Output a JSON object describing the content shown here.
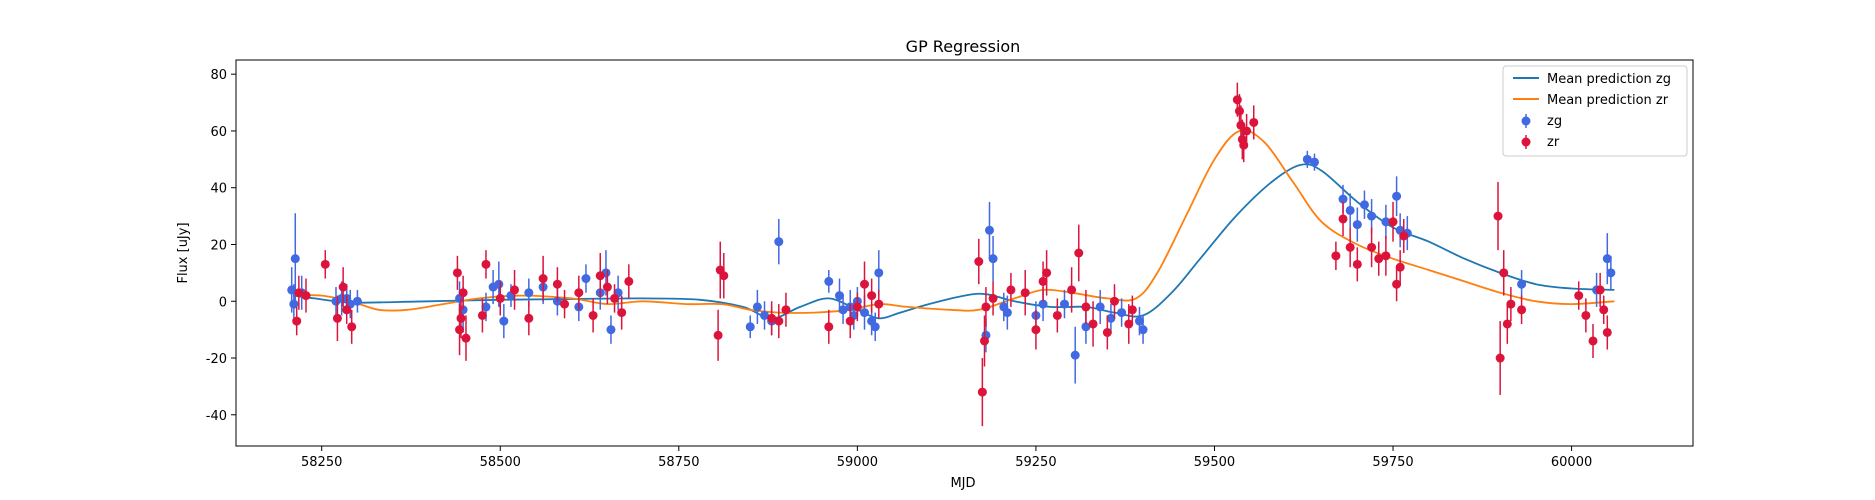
{
  "chart_data": {
    "type": "scatter",
    "title": "GP Regression",
    "xlabel": "MJD",
    "ylabel": "Flux [uJy]",
    "xlim": [
      58130,
      60170
    ],
    "ylim": [
      -51,
      85
    ],
    "xticks": [
      58250,
      58500,
      58750,
      59000,
      59250,
      59500,
      59750,
      60000
    ],
    "yticks": [
      -40,
      -20,
      0,
      20,
      40,
      60,
      80
    ],
    "legend_position": "top-right",
    "grid": false,
    "colors": {
      "zg_line": "#1f77b4",
      "zr_line": "#ff7f0e",
      "zg_points": "#4169e1",
      "zr_points": "#dc143c"
    },
    "legend": [
      "Mean prediction zg",
      "Mean prediction zr",
      "zg",
      "zr"
    ],
    "lines": [
      {
        "name": "Mean prediction zg",
        "color": "#1f77b4",
        "points": [
          [
            58210,
            2
          ],
          [
            58240,
            1
          ],
          [
            58270,
            0
          ],
          [
            58300,
            -0.5
          ],
          [
            58400,
            0
          ],
          [
            58500,
            0.5
          ],
          [
            58600,
            0.8
          ],
          [
            58700,
            1
          ],
          [
            58780,
            0.5
          ],
          [
            58840,
            -2
          ],
          [
            58880,
            -6
          ],
          [
            58920,
            -2
          ],
          [
            58960,
            1
          ],
          [
            59000,
            -3
          ],
          [
            59030,
            -6
          ],
          [
            59060,
            -4
          ],
          [
            59100,
            -1
          ],
          [
            59150,
            2
          ],
          [
            59180,
            2.5
          ],
          [
            59220,
            0
          ],
          [
            59270,
            -2
          ],
          [
            59320,
            -2
          ],
          [
            59360,
            -4
          ],
          [
            59400,
            -5
          ],
          [
            59440,
            3
          ],
          [
            59480,
            15
          ],
          [
            59530,
            30
          ],
          [
            59580,
            42
          ],
          [
            59620,
            48
          ],
          [
            59650,
            46
          ],
          [
            59700,
            35
          ],
          [
            59750,
            26
          ],
          [
            59800,
            21
          ],
          [
            59850,
            15
          ],
          [
            59900,
            10
          ],
          [
            59950,
            6
          ],
          [
            60000,
            4.5
          ],
          [
            60060,
            4
          ]
        ]
      },
      {
        "name": "Mean prediction zr",
        "color": "#ff7f0e",
        "points": [
          [
            58210,
            2
          ],
          [
            58250,
            2
          ],
          [
            58290,
            0
          ],
          [
            58330,
            -3
          ],
          [
            58370,
            -3
          ],
          [
            58420,
            -1
          ],
          [
            58470,
            1
          ],
          [
            58530,
            2
          ],
          [
            58600,
            1
          ],
          [
            58650,
            -1
          ],
          [
            58700,
            0
          ],
          [
            58760,
            -1
          ],
          [
            58810,
            -1
          ],
          [
            58850,
            -3
          ],
          [
            58890,
            -4
          ],
          [
            58940,
            -4
          ],
          [
            58990,
            -3
          ],
          [
            59030,
            -1
          ],
          [
            59070,
            -2
          ],
          [
            59130,
            -3
          ],
          [
            59170,
            -3
          ],
          [
            59220,
            1
          ],
          [
            59260,
            4
          ],
          [
            59300,
            3
          ],
          [
            59350,
            1
          ],
          [
            59390,
            1
          ],
          [
            59420,
            10
          ],
          [
            59460,
            30
          ],
          [
            59500,
            50
          ],
          [
            59535,
            60
          ],
          [
            59570,
            56
          ],
          [
            59610,
            42
          ],
          [
            59650,
            28
          ],
          [
            59700,
            20
          ],
          [
            59750,
            15
          ],
          [
            59800,
            11
          ],
          [
            59850,
            7
          ],
          [
            59900,
            3
          ],
          [
            59950,
            0
          ],
          [
            60000,
            -1
          ],
          [
            60060,
            0
          ]
        ]
      }
    ],
    "series": [
      {
        "name": "zg",
        "color": "#4169e1",
        "points": [
          [
            58208,
            4,
            8
          ],
          [
            58211,
            -1,
            7
          ],
          [
            58213,
            15,
            16
          ],
          [
            58222,
            3,
            6
          ],
          [
            58270,
            0,
            5
          ],
          [
            58278,
            1,
            6
          ],
          [
            58285,
            1,
            5
          ],
          [
            58290,
            -1,
            5
          ],
          [
            58300,
            0,
            4
          ],
          [
            58443,
            1,
            6
          ],
          [
            58448,
            -3,
            8
          ],
          [
            58480,
            -2,
            5
          ],
          [
            58490,
            5,
            6
          ],
          [
            58498,
            6,
            8
          ],
          [
            58505,
            -7,
            6
          ],
          [
            58515,
            2,
            4
          ],
          [
            58540,
            3,
            5
          ],
          [
            58560,
            5,
            6
          ],
          [
            58580,
            0,
            5
          ],
          [
            58610,
            -2,
            5
          ],
          [
            58620,
            8,
            5
          ],
          [
            58640,
            3,
            6
          ],
          [
            58648,
            10,
            8
          ],
          [
            58655,
            -10,
            5
          ],
          [
            58665,
            3,
            6
          ],
          [
            58850,
            -9,
            4
          ],
          [
            58860,
            -2,
            6
          ],
          [
            58870,
            -5,
            5
          ],
          [
            58880,
            -7,
            5
          ],
          [
            58890,
            21,
            8
          ],
          [
            58960,
            7,
            4
          ],
          [
            58975,
            2,
            6
          ],
          [
            58980,
            -3,
            5
          ],
          [
            58990,
            -2,
            6
          ],
          [
            58995,
            -5,
            5
          ],
          [
            59000,
            0,
            5
          ],
          [
            59010,
            -4,
            6
          ],
          [
            59020,
            -7,
            5
          ],
          [
            59025,
            -9,
            5
          ],
          [
            59030,
            10,
            8
          ],
          [
            59180,
            -12,
            6
          ],
          [
            59185,
            25,
            10
          ],
          [
            59190,
            15,
            8
          ],
          [
            59205,
            -2,
            5
          ],
          [
            59210,
            -4,
            6
          ],
          [
            59250,
            -5,
            5
          ],
          [
            59260,
            -1,
            6
          ],
          [
            59290,
            -1,
            5
          ],
          [
            59305,
            -19,
            10
          ],
          [
            59320,
            -9,
            6
          ],
          [
            59340,
            -2,
            6
          ],
          [
            59355,
            -6,
            5
          ],
          [
            59370,
            -4,
            5
          ],
          [
            59395,
            -7,
            5
          ],
          [
            59400,
            -10,
            5
          ],
          [
            59630,
            50,
            3
          ],
          [
            59640,
            49,
            3
          ],
          [
            59680,
            36,
            5
          ],
          [
            59690,
            32,
            6
          ],
          [
            59700,
            27,
            6
          ],
          [
            59710,
            34,
            5
          ],
          [
            59720,
            30,
            6
          ],
          [
            59740,
            28,
            6
          ],
          [
            59755,
            37,
            7
          ],
          [
            59760,
            25,
            6
          ],
          [
            59770,
            24,
            6
          ],
          [
            59930,
            6,
            5
          ],
          [
            60035,
            4,
            6
          ],
          [
            60050,
            15,
            9
          ],
          [
            60055,
            10,
            6
          ]
        ]
      },
      {
        "name": "zr",
        "color": "#dc143c",
        "points": [
          [
            58215,
            -7,
            5
          ],
          [
            58218,
            3,
            6
          ],
          [
            58228,
            2,
            6
          ],
          [
            58255,
            13,
            5
          ],
          [
            58272,
            -6,
            8
          ],
          [
            58280,
            5,
            7
          ],
          [
            58285,
            -3,
            5
          ],
          [
            58292,
            -9,
            6
          ],
          [
            58440,
            10,
            6
          ],
          [
            58443,
            -10,
            9
          ],
          [
            58445,
            -6,
            7
          ],
          [
            58448,
            3,
            6
          ],
          [
            58452,
            -13,
            8
          ],
          [
            58475,
            -5,
            6
          ],
          [
            58480,
            13,
            5
          ],
          [
            58500,
            1,
            6
          ],
          [
            58520,
            4,
            7
          ],
          [
            58540,
            -6,
            6
          ],
          [
            58560,
            8,
            8
          ],
          [
            58580,
            6,
            6
          ],
          [
            58590,
            -1,
            5
          ],
          [
            58610,
            3,
            6
          ],
          [
            58630,
            -5,
            6
          ],
          [
            58640,
            9,
            8
          ],
          [
            58650,
            5,
            6
          ],
          [
            58660,
            1,
            5
          ],
          [
            58670,
            -4,
            6
          ],
          [
            58680,
            7,
            6
          ],
          [
            58805,
            -12,
            9
          ],
          [
            58808,
            11,
            10
          ],
          [
            58813,
            9,
            8
          ],
          [
            58880,
            -6,
            6
          ],
          [
            58890,
            -7,
            6
          ],
          [
            58900,
            -3,
            6
          ],
          [
            58960,
            -9,
            6
          ],
          [
            58990,
            -7,
            6
          ],
          [
            59000,
            -2,
            5
          ],
          [
            59010,
            6,
            8
          ],
          [
            59020,
            2,
            6
          ],
          [
            59030,
            -1,
            5
          ],
          [
            59170,
            14,
            8
          ],
          [
            59175,
            -32,
            12
          ],
          [
            59178,
            -14,
            9
          ],
          [
            59180,
            -2,
            7
          ],
          [
            59190,
            1,
            6
          ],
          [
            59215,
            4,
            6
          ],
          [
            59235,
            3,
            8
          ],
          [
            59250,
            -10,
            7
          ],
          [
            59260,
            7,
            7
          ],
          [
            59265,
            10,
            8
          ],
          [
            59280,
            -5,
            6
          ],
          [
            59300,
            4,
            8
          ],
          [
            59310,
            17,
            10
          ],
          [
            59320,
            -2,
            6
          ],
          [
            59330,
            -8,
            8
          ],
          [
            59350,
            -11,
            6
          ],
          [
            59360,
            0,
            6
          ],
          [
            59380,
            -8,
            7
          ],
          [
            59385,
            -3,
            5
          ],
          [
            59532,
            71,
            6
          ],
          [
            59535,
            67,
            6
          ],
          [
            59537,
            62,
            7
          ],
          [
            59539,
            57,
            7
          ],
          [
            59541,
            55,
            6
          ],
          [
            59545,
            60,
            6
          ],
          [
            59555,
            63,
            6
          ],
          [
            59670,
            16,
            5
          ],
          [
            59680,
            29,
            6
          ],
          [
            59690,
            19,
            7
          ],
          [
            59700,
            13,
            6
          ],
          [
            59720,
            19,
            7
          ],
          [
            59730,
            15,
            6
          ],
          [
            59740,
            16,
            7
          ],
          [
            59750,
            28,
            7
          ],
          [
            59755,
            6,
            6
          ],
          [
            59760,
            12,
            6
          ],
          [
            59765,
            23,
            6
          ],
          [
            59897,
            30,
            12
          ],
          [
            59900,
            -20,
            13
          ],
          [
            59905,
            10,
            8
          ],
          [
            59910,
            -8,
            7
          ],
          [
            59915,
            -1,
            6
          ],
          [
            59930,
            -3,
            5
          ],
          [
            60010,
            2,
            5
          ],
          [
            60020,
            -5,
            6
          ],
          [
            60030,
            -14,
            6
          ],
          [
            60040,
            4,
            6
          ],
          [
            60045,
            -3,
            5
          ],
          [
            60050,
            -11,
            6
          ]
        ]
      }
    ]
  }
}
